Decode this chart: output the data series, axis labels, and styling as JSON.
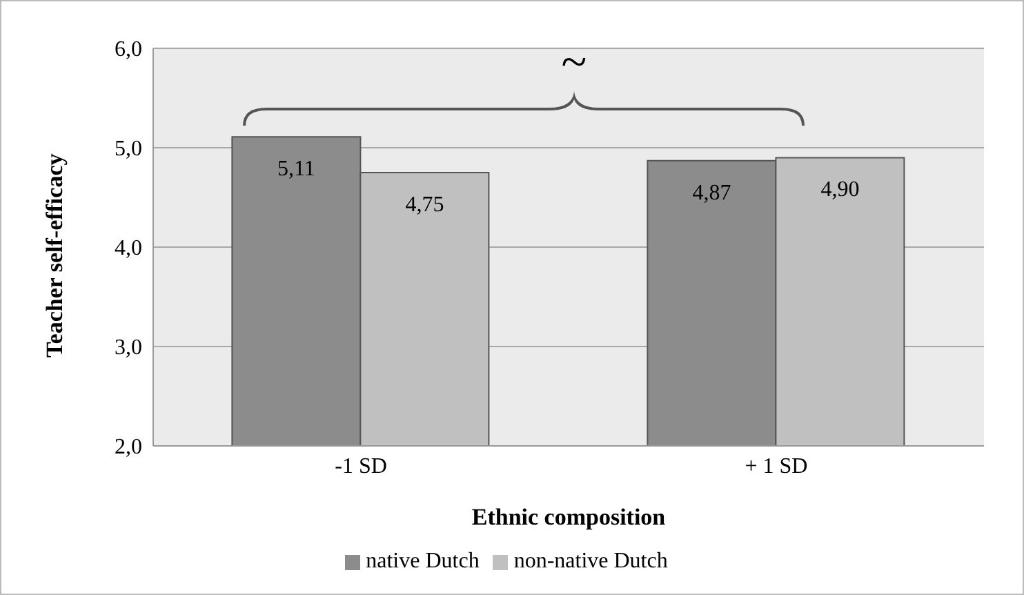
{
  "chart_data": {
    "type": "bar",
    "xlabel": "Ethnic composition",
    "ylabel": "Teacher self-efficacy",
    "categories": [
      "-1 SD",
      "+ 1 SD"
    ],
    "series": [
      {
        "name": "native Dutch",
        "color": "#8c8c8c",
        "values": [
          5.11,
          4.87
        ],
        "value_labels": [
          "5,11",
          "4,87"
        ]
      },
      {
        "name": "non-native Dutch",
        "color": "#c0c0c0",
        "values": [
          4.75,
          4.9
        ],
        "value_labels": [
          "4,75",
          "4,90"
        ]
      }
    ],
    "ylim": [
      2,
      6
    ],
    "yticks": [
      {
        "value": 2,
        "label": "2,0"
      },
      {
        "value": 3,
        "label": "3,0"
      },
      {
        "value": 4,
        "label": "4,0"
      },
      {
        "value": 5,
        "label": "5,0"
      },
      {
        "value": 6,
        "label": "6,0"
      }
    ],
    "grid": "y",
    "legend": "bottom",
    "annotations": [
      "~"
    ]
  }
}
